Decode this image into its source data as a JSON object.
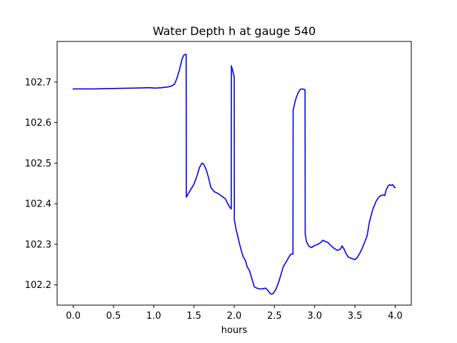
{
  "chart_data": {
    "type": "line",
    "title": "Water Depth h at gauge 540",
    "xlabel": "hours",
    "ylabel": "",
    "xlim": [
      -0.2,
      4.2
    ],
    "ylim": [
      102.15,
      102.8
    ],
    "xticks": [
      0.0,
      0.5,
      1.0,
      1.5,
      2.0,
      2.5,
      3.0,
      3.5,
      4.0
    ],
    "xtick_labels": [
      "0.0",
      "0.5",
      "1.0",
      "1.5",
      "2.0",
      "2.5",
      "3.0",
      "3.5",
      "4.0"
    ],
    "yticks": [
      102.2,
      102.3,
      102.4,
      102.5,
      102.6,
      102.7
    ],
    "ytick_labels": [
      "102.2",
      "102.3",
      "102.4",
      "102.5",
      "102.6",
      "102.7"
    ],
    "grid": false,
    "legend": false,
    "series": [
      {
        "color": "#0000ff",
        "x": [
          0.0,
          0.25,
          0.5,
          0.75,
          0.95,
          1.02,
          1.1,
          1.18,
          1.22,
          1.26,
          1.29,
          1.32,
          1.35,
          1.37,
          1.39,
          1.403,
          1.405,
          1.43,
          1.46,
          1.5,
          1.54,
          1.57,
          1.6,
          1.62,
          1.65,
          1.68,
          1.71,
          1.75,
          1.8,
          1.85,
          1.89,
          1.92,
          1.95,
          1.963,
          1.965,
          1.985,
          2.0,
          2.002,
          2.02,
          2.05,
          2.08,
          2.11,
          2.14,
          2.16,
          2.19,
          2.22,
          2.25,
          2.28,
          2.31,
          2.35,
          2.39,
          2.42,
          2.45,
          2.47,
          2.49,
          2.52,
          2.55,
          2.58,
          2.61,
          2.64,
          2.67,
          2.7,
          2.73,
          2.732,
          2.76,
          2.79,
          2.82,
          2.85,
          2.87,
          2.88,
          2.882,
          2.9,
          2.93,
          2.96,
          3.0,
          3.04,
          3.08,
          3.1,
          3.13,
          3.16,
          3.2,
          3.24,
          3.28,
          3.32,
          3.34,
          3.36,
          3.39,
          3.42,
          3.46,
          3.5,
          3.53,
          3.56,
          3.59,
          3.62,
          3.65,
          3.68,
          3.72,
          3.76,
          3.79,
          3.82,
          3.85,
          3.87,
          3.89,
          3.91,
          3.93,
          3.95,
          3.97,
          3.99,
          4.0
        ],
        "y": [
          102.683,
          102.683,
          102.684,
          102.685,
          102.686,
          102.685,
          102.686,
          102.688,
          102.69,
          102.695,
          102.71,
          102.73,
          102.755,
          102.765,
          102.768,
          102.768,
          102.416,
          102.425,
          102.435,
          102.448,
          102.47,
          102.49,
          102.5,
          102.498,
          102.485,
          102.465,
          102.44,
          102.43,
          102.425,
          102.418,
          102.412,
          102.4,
          102.39,
          102.387,
          102.74,
          102.725,
          102.713,
          102.36,
          102.34,
          102.315,
          102.29,
          102.27,
          102.26,
          102.245,
          102.235,
          102.215,
          102.195,
          102.192,
          102.19,
          102.19,
          102.192,
          102.186,
          102.178,
          102.177,
          102.18,
          102.19,
          102.205,
          102.225,
          102.245,
          102.255,
          102.265,
          102.275,
          102.276,
          102.63,
          102.655,
          102.672,
          102.682,
          102.683,
          102.682,
          102.68,
          102.325,
          102.305,
          102.295,
          102.292,
          102.297,
          102.3,
          102.305,
          102.31,
          102.307,
          102.305,
          102.297,
          102.29,
          102.285,
          102.288,
          102.296,
          102.29,
          102.277,
          102.268,
          102.265,
          102.262,
          102.268,
          102.278,
          102.29,
          102.305,
          102.32,
          102.355,
          102.385,
          102.405,
          102.415,
          102.42,
          102.422,
          102.42,
          102.435,
          102.443,
          102.447,
          102.445,
          102.447,
          102.44,
          102.44
        ]
      }
    ]
  }
}
